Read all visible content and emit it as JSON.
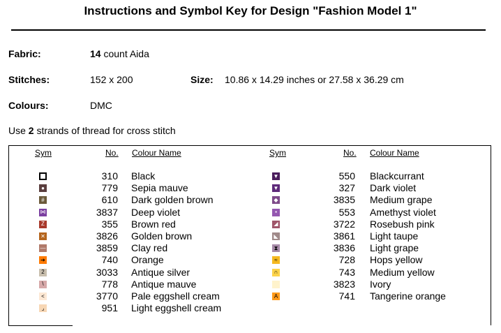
{
  "title": "Instructions and Symbol Key for Design \"Fashion Model 1\"",
  "fabric": {
    "label": "Fabric:",
    "count": "14",
    "rest": " count Aida"
  },
  "stitches": {
    "label": "Stitches:",
    "value": "152 x 200"
  },
  "size": {
    "label": "Size:",
    "value": "10.86 x 14.29 inches or 27.58 x 36.29 cm"
  },
  "colours": {
    "label": "Colours:",
    "value": "DMC"
  },
  "strands": {
    "before": "Use ",
    "count": "2",
    "after": " strands of thread for cross stitch"
  },
  "headers": {
    "sym": "Sym",
    "no": "No.",
    "name": "Colour Name"
  },
  "left": [
    {
      "no": "310",
      "name": "Black",
      "color": "#ffffff",
      "border": "#000000",
      "glyph": "",
      "icon": "hollow-square-icon"
    },
    {
      "no": "779",
      "name": "Sepia mauve",
      "color": "#5a3e3e",
      "border": "#5a3e3e",
      "glyph": "●",
      "fg": "#ffffff",
      "icon": "dot-icon"
    },
    {
      "no": "610",
      "name": "Dark golden brown",
      "color": "#6b5a3a",
      "border": "#6b5a3a",
      "glyph": "#",
      "fg": "#ffffff",
      "icon": "hash-icon"
    },
    {
      "no": "3837",
      "name": "Deep violet",
      "color": "#7b3fa0",
      "border": "#7b3fa0",
      "glyph": "⋈",
      "fg": "#ffffff",
      "icon": "bowtie-icon"
    },
    {
      "no": "355",
      "name": "Brown red",
      "color": "#a8392b",
      "border": "#a8392b",
      "glyph": "Z",
      "fg": "#ffffff",
      "icon": "z-icon"
    },
    {
      "no": "3826",
      "name": "Golden brown",
      "color": "#b5651d",
      "border": "#b5651d",
      "glyph": "✕",
      "fg": "#ffffff",
      "icon": "cross-icon"
    },
    {
      "no": "3859",
      "name": "Clay red",
      "color": "#b07a6a",
      "border": "#b07a6a",
      "glyph": "—",
      "fg": "#ffffff",
      "icon": "dash-icon"
    },
    {
      "no": "740",
      "name": "Orange",
      "color": "#ff7a00",
      "border": "#ff7a00",
      "glyph": "➔",
      "fg": "#000000",
      "icon": "arrow-icon"
    },
    {
      "no": "3033",
      "name": "Antique silver",
      "color": "#c9bfae",
      "border": "#c9bfae",
      "glyph": "2",
      "fg": "#000000",
      "icon": "two-icon"
    },
    {
      "no": "778",
      "name": "Antique mauve",
      "color": "#d6a8a8",
      "border": "#d6a8a8",
      "glyph": "\\",
      "fg": "#000000",
      "icon": "backslash-icon"
    },
    {
      "no": "3770",
      "name": "Pale eggshell cream",
      "color": "#fde8d4",
      "border": "#fde8d4",
      "glyph": "<",
      "fg": "#000000",
      "icon": "less-than-icon"
    },
    {
      "no": "951",
      "name": "Light eggshell cream",
      "color": "#f7d7b5",
      "border": "#f7d7b5",
      "glyph": "⌟",
      "fg": "#000000",
      "icon": "corner-icon"
    }
  ],
  "right": [
    {
      "no": "550",
      "name": "Blackcurrant",
      "color": "#4a1d5c",
      "border": "#4a1d5c",
      "glyph": "▼",
      "fg": "#ffffff",
      "icon": "down-triangle-icon"
    },
    {
      "no": "327",
      "name": "Dark violet",
      "color": "#5e2a7a",
      "border": "#5e2a7a",
      "glyph": "▼",
      "fg": "#ffffff",
      "icon": "down-triangle-icon"
    },
    {
      "no": "3835",
      "name": "Medium grape",
      "color": "#7e4a8a",
      "border": "#7e4a8a",
      "glyph": "◆",
      "fg": "#ffffff",
      "icon": "diamond-icon"
    },
    {
      "no": "553",
      "name": "Amethyst violet",
      "color": "#9457b0",
      "border": "#9457b0",
      "glyph": "▪",
      "fg": "#ffffff",
      "icon": "small-square-icon"
    },
    {
      "no": "3722",
      "name": "Rosebush pink",
      "color": "#a0566a",
      "border": "#a0566a",
      "glyph": "◢",
      "fg": "#ffffff",
      "icon": "corner-triangle-icon"
    },
    {
      "no": "3861",
      "name": "Light taupe",
      "color": "#a08a8a",
      "border": "#a08a8a",
      "glyph": "◣",
      "fg": "#ffffff",
      "icon": "corner-triangle-icon"
    },
    {
      "no": "3836",
      "name": "Light grape",
      "color": "#a68aa8",
      "border": "#a68aa8",
      "glyph": "⧗",
      "fg": "#000000",
      "icon": "hourglass-icon"
    },
    {
      "no": "728",
      "name": "Hops yellow",
      "color": "#f5b920",
      "border": "#f5b920",
      "glyph": "≈",
      "fg": "#000000",
      "icon": "wave-icon"
    },
    {
      "no": "743",
      "name": "Medium yellow",
      "color": "#fcd34a",
      "border": "#fcd34a",
      "glyph": "∩",
      "fg": "#000000",
      "icon": "arch-icon"
    },
    {
      "no": "3823",
      "name": "Ivory",
      "color": "#fff3cc",
      "border": "#fff3cc",
      "glyph": "",
      "fg": "#000000",
      "icon": "blank-square-icon"
    },
    {
      "no": "741",
      "name": "Tangerine orange",
      "color": "#ff9a1a",
      "border": "#ff9a1a",
      "glyph": "A",
      "fg": "#000000",
      "icon": "a-icon"
    }
  ]
}
